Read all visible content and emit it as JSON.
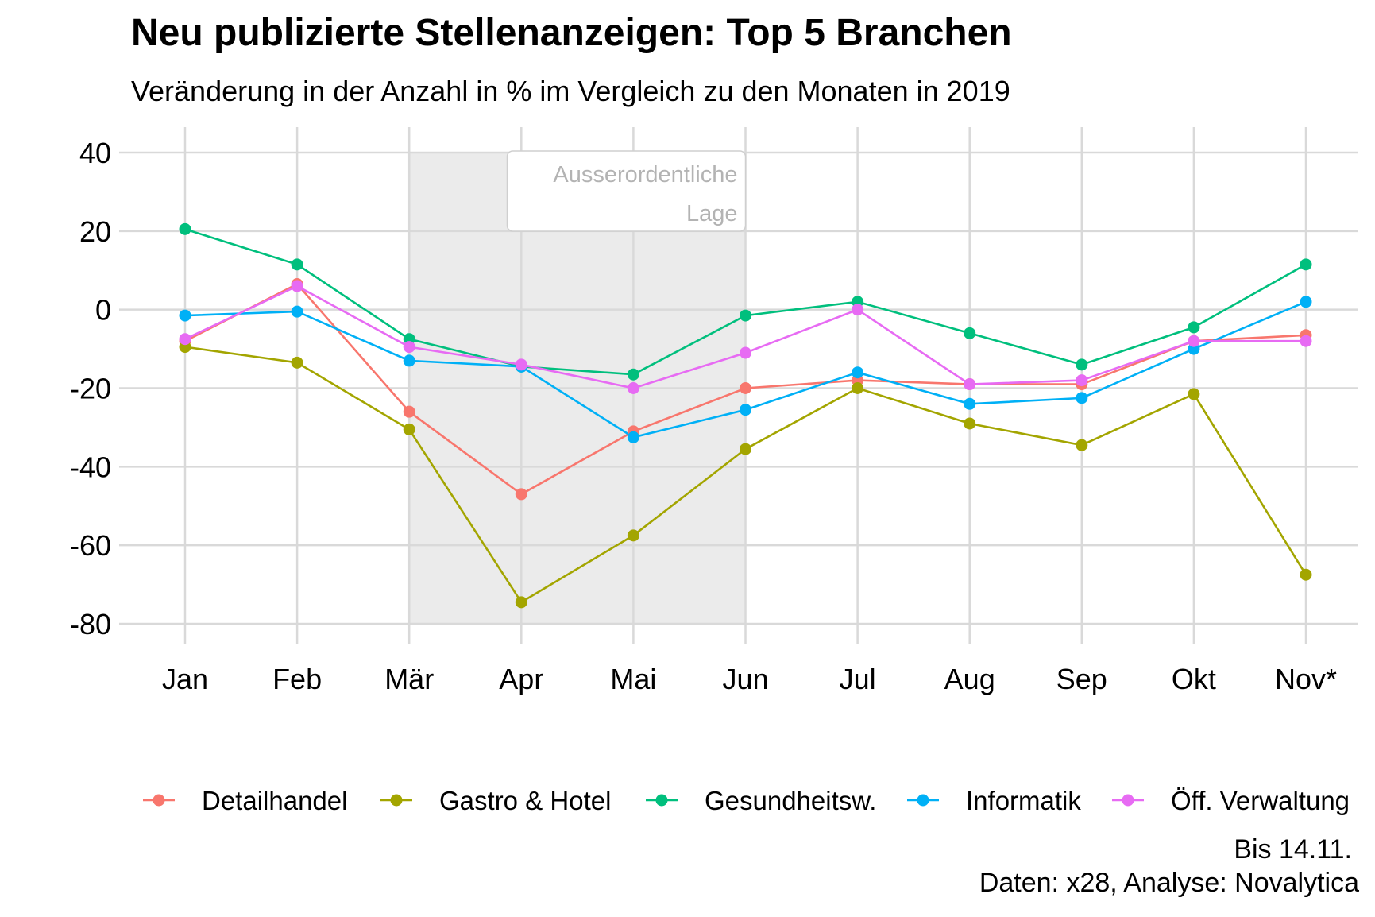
{
  "chart_data": {
    "type": "line",
    "title": "Neu publizierte Stellenanzeigen: Top 5 Branchen",
    "subtitle": "Veränderung in der Anzahl in % im Vergleich zu den Monaten in 2019",
    "categories": [
      "Jan",
      "Feb",
      "Mär",
      "Apr",
      "Mai",
      "Jun",
      "Jul",
      "Aug",
      "Sep",
      "Okt",
      "Nov*"
    ],
    "ylim": [
      -80,
      40
    ],
    "yticks": [
      40,
      20,
      0,
      -20,
      -40,
      -60,
      -80
    ],
    "grid": true,
    "legend_position": "bottom",
    "shaded_region": {
      "from": "Mär",
      "to": "Jun",
      "label_lines": [
        "Ausserordentliche",
        "Lage"
      ]
    },
    "series": [
      {
        "name": "Detailhandel",
        "color": "#F8766D",
        "values": [
          -8,
          6.5,
          -26,
          -47,
          -31,
          -20,
          -18,
          -19,
          -19,
          -8,
          -6.5
        ]
      },
      {
        "name": "Gastro & Hotel",
        "color": "#A3A500",
        "values": [
          -9.5,
          -13.5,
          -30.5,
          -74.5,
          -57.5,
          -35.5,
          -20,
          -29,
          -34.5,
          -21.5,
          -67.5
        ]
      },
      {
        "name": "Gesundheitsw.",
        "color": "#00BF7D",
        "values": [
          20.5,
          11.5,
          -7.5,
          -14.5,
          -16.5,
          -1.5,
          2,
          -6,
          -14,
          -4.5,
          11.5
        ]
      },
      {
        "name": "Informatik",
        "color": "#00B0F6",
        "values": [
          -1.5,
          -0.5,
          -13,
          -14.5,
          -32.5,
          -25.5,
          -16,
          -24,
          -22.5,
          -10,
          2
        ]
      },
      {
        "name": "Öff. Verwaltung",
        "color": "#E76BF3",
        "values": [
          -7.5,
          6,
          -9.5,
          -14,
          -20,
          -11,
          0,
          -19,
          -18,
          -8,
          -8
        ]
      }
    ],
    "caption": [
      "Bis 14.11.",
      "Daten: x28, Analyse: Novalytica"
    ]
  }
}
